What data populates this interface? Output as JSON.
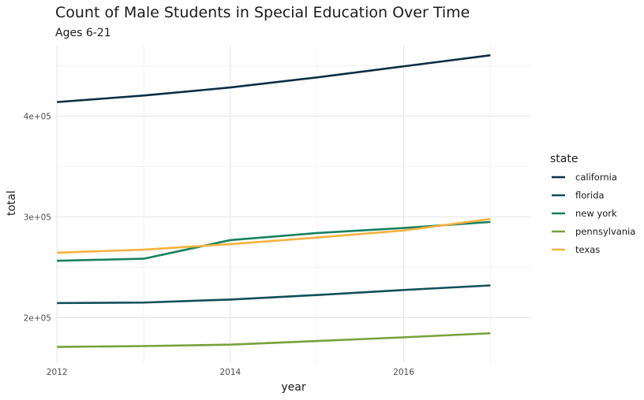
{
  "chart_data": {
    "type": "line",
    "title": "Count of Male Students in Special Education Over Time",
    "subtitle": "Ages 6-21",
    "xlabel": "year",
    "ylabel": "total",
    "x": [
      2012,
      2013,
      2014,
      2015,
      2016,
      2017
    ],
    "xlim": [
      2011.98,
      2017.47
    ],
    "ylim": [
      155000,
      470000
    ],
    "xticks": [
      2012,
      2014,
      2016
    ],
    "xtick_labels": [
      "2012",
      "2014",
      "2016"
    ],
    "yticks": [
      200000,
      300000,
      400000
    ],
    "ytick_labels": [
      "2e+05",
      "3e+05",
      "4e+05"
    ],
    "grid": true,
    "legend": {
      "title": "state",
      "position": "right"
    },
    "series": [
      {
        "name": "california",
        "color": "#0b2e44",
        "values": [
          414000,
          420500,
          428500,
          438500,
          449500,
          460500
        ]
      },
      {
        "name": "florida",
        "color": "#0f4f59",
        "values": [
          214500,
          215000,
          218000,
          222500,
          227500,
          232000
        ]
      },
      {
        "name": "new york",
        "color": "#17805f",
        "values": [
          256500,
          258500,
          277000,
          284000,
          289000,
          295000
        ]
      },
      {
        "name": "pennsylvania",
        "color": "#76a23a",
        "values": [
          171000,
          171800,
          173200,
          176800,
          180500,
          184500
        ]
      },
      {
        "name": "texas",
        "color": "#f7b13e",
        "values": [
          264500,
          267500,
          273000,
          279500,
          286500,
          298000
        ]
      }
    ]
  }
}
